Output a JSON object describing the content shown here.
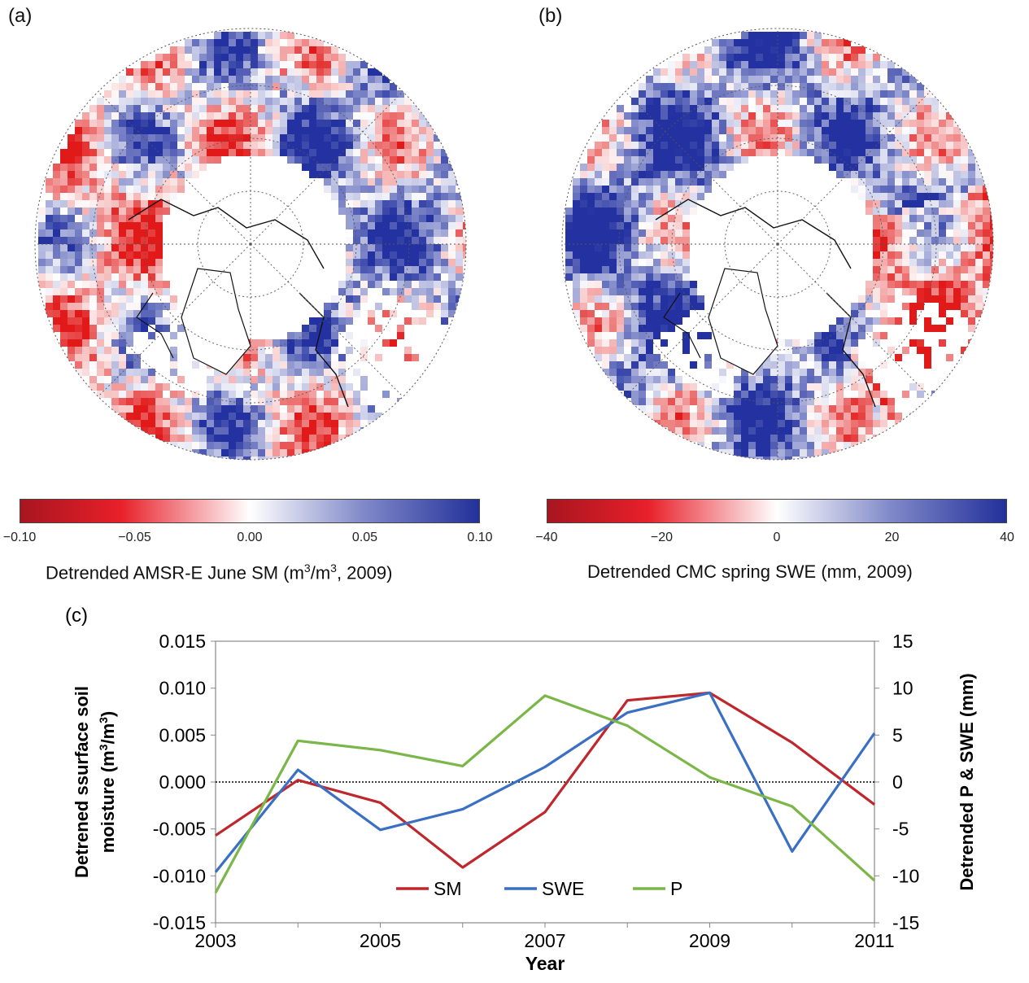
{
  "panels": {
    "a": {
      "label": "(a)",
      "colorbar": {
        "title_main": "Detrended AMSR-E June SM (m",
        "title_sup1": "3",
        "title_mid": "/m",
        "title_sup2": "3",
        "title_end": ", 2009)",
        "ticks": [
          "−0.10",
          "−0.05",
          "0.00",
          "0.05",
          "0.10"
        ]
      }
    },
    "b": {
      "label": "(b)",
      "colorbar": {
        "title": "Detrended CMC spring SWE (mm, 2009)",
        "ticks": [
          "−40",
          "−20",
          "0",
          "20",
          "40"
        ]
      }
    },
    "c": {
      "label": "(c)"
    }
  },
  "colors": {
    "negative_dark": "#a8151f",
    "negative": "#e8202a",
    "neutral": "#ffffff",
    "positive": "#2233a0",
    "SM": "#c0272d",
    "SWE": "#3a6fc4",
    "P": "#7ab648"
  },
  "chart_data": {
    "type": "line",
    "x": [
      2003,
      2004,
      2005,
      2006,
      2007,
      2008,
      2009,
      2010,
      2011
    ],
    "x_ticks": [
      "2003",
      "2005",
      "2007",
      "2009",
      "2011"
    ],
    "xlabel": "Year",
    "ylabel_left_line1": "Detrened ssurface soil",
    "ylabel_left_line2": "moisture (m",
    "ylabel_left_sup1": "3",
    "ylabel_left_mid": "/m",
    "ylabel_left_sup2": "3",
    "ylabel_left_end": ")",
    "ylabel_right": "Detrended P & SWE (mm)",
    "ylim_left": [
      -0.015,
      0.015
    ],
    "ylim_right": [
      -15,
      15
    ],
    "left_ticks": [
      "0.015",
      "0.010",
      "0.005",
      "0.000",
      "-0.005",
      "-0.010",
      "-0.015"
    ],
    "left_tick_values": [
      0.015,
      0.01,
      0.005,
      0.0,
      -0.005,
      -0.01,
      -0.015
    ],
    "right_ticks": [
      "15",
      "10",
      "5",
      "0",
      "-5",
      "-10",
      "-15"
    ],
    "right_tick_values": [
      15,
      10,
      5,
      0,
      -5,
      -10,
      -15
    ],
    "zero_line": "dotted",
    "legend_position": "bottom-center",
    "series": [
      {
        "name": "SM",
        "axis": "left",
        "color": "#c0272d",
        "values": [
          -0.0057,
          0.0002,
          -0.0022,
          -0.0091,
          -0.0032,
          0.0087,
          0.0095,
          0.0042,
          -0.0024
        ]
      },
      {
        "name": "SWE",
        "axis": "right",
        "color": "#3a6fc4",
        "values": [
          -9.6,
          1.3,
          -5.1,
          -2.9,
          1.6,
          7.4,
          9.5,
          -7.4,
          5.2
        ]
      },
      {
        "name": "P",
        "axis": "right",
        "color": "#7ab648",
        "values": [
          -11.8,
          4.4,
          3.4,
          1.7,
          9.2,
          6.0,
          0.5,
          -2.6,
          -10.5
        ]
      }
    ]
  }
}
